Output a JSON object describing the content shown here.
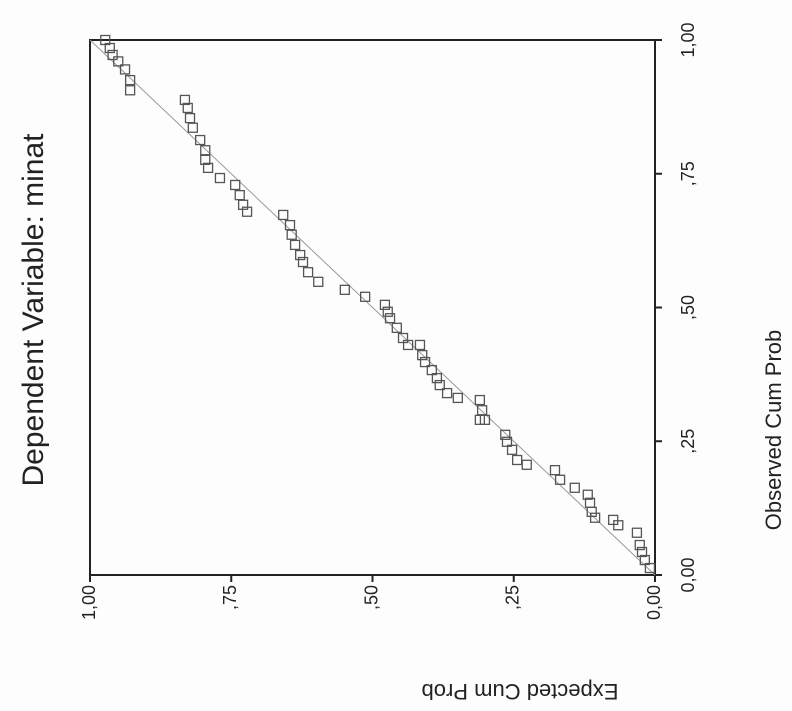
{
  "chart_data": {
    "type": "scatter",
    "title": "Dependent Variable: minat",
    "x_label": "Observed Cum Prob",
    "y_label": "Expected Cum Prob",
    "x": [
      1.0,
      0.985,
      0.972,
      0.96,
      0.945,
      0.925,
      0.906,
      0.888,
      0.873,
      0.854,
      0.836,
      0.813,
      0.794,
      0.776,
      0.761,
      0.742,
      0.729,
      0.71,
      0.692,
      0.679,
      0.673,
      0.654,
      0.636,
      0.617,
      0.598,
      0.585,
      0.566,
      0.548,
      0.533,
      0.52,
      0.505,
      0.492,
      0.48,
      0.462,
      0.443,
      0.43,
      0.43,
      0.411,
      0.398,
      0.383,
      0.368,
      0.355,
      0.34,
      0.331,
      0.327,
      0.308,
      0.29,
      0.29,
      0.262,
      0.249,
      0.234,
      0.215,
      0.206,
      0.196,
      0.178,
      0.163,
      0.15,
      0.135,
      0.118,
      0.107,
      0.103,
      0.093,
      0.079,
      0.056,
      0.043,
      0.028,
      0.013
    ],
    "y": [
      0.973,
      0.965,
      0.96,
      0.95,
      0.938,
      0.929,
      0.929,
      0.832,
      0.827,
      0.823,
      0.818,
      0.805,
      0.796,
      0.796,
      0.791,
      0.77,
      0.743,
      0.735,
      0.729,
      0.722,
      0.658,
      0.646,
      0.643,
      0.637,
      0.628,
      0.623,
      0.614,
      0.596,
      0.549,
      0.513,
      0.478,
      0.473,
      0.469,
      0.457,
      0.446,
      0.437,
      0.416,
      0.412,
      0.407,
      0.395,
      0.386,
      0.381,
      0.368,
      0.349,
      0.31,
      0.306,
      0.301,
      0.31,
      0.265,
      0.262,
      0.253,
      0.244,
      0.227,
      0.177,
      0.168,
      0.142,
      0.119,
      0.115,
      0.112,
      0.106,
      0.074,
      0.065,
      0.032,
      0.027,
      0.023,
      0.018,
      0.009
    ],
    "color": "#555555",
    "xlim": [
      0,
      1
    ],
    "ylim": [
      0,
      1
    ],
    "xticks": [
      {
        "value": 0,
        "label": "0,00"
      },
      {
        "value": 0.25,
        "label": ",25"
      },
      {
        "value": 0.5,
        "label": ",50"
      },
      {
        "value": 0.75,
        "label": ",75"
      },
      {
        "value": 1,
        "label": "1,00"
      }
    ],
    "yticks": [
      {
        "value": 0,
        "label": "0,00"
      },
      {
        "value": 0.25,
        "label": ",25"
      },
      {
        "value": 0.5,
        "label": ",50"
      },
      {
        "value": 0.75,
        "label": ",75"
      },
      {
        "value": 1,
        "label": "1,00"
      }
    ],
    "reference_line": true
  }
}
